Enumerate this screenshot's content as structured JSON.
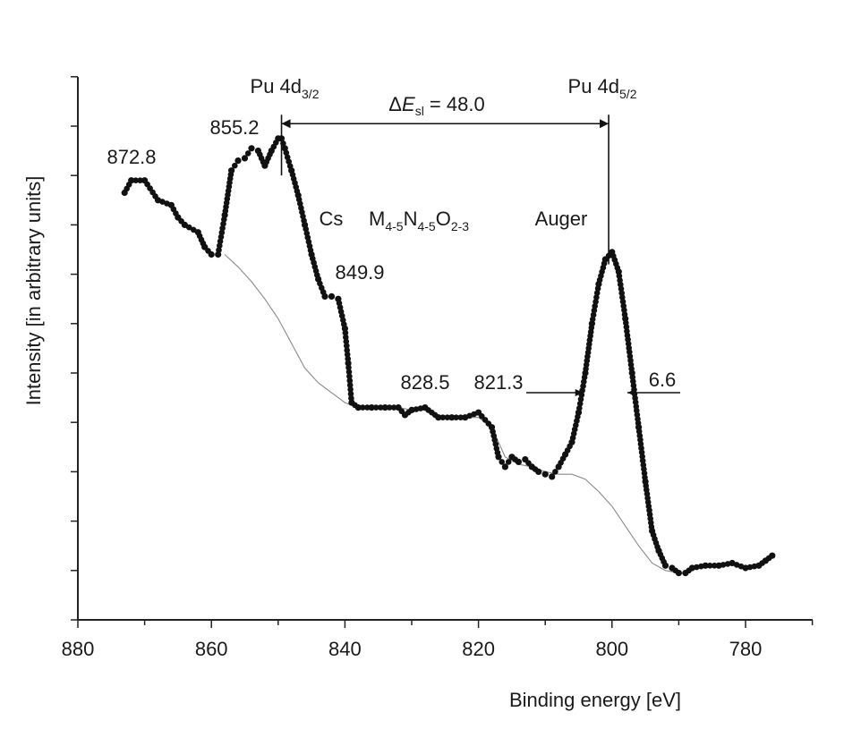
{
  "chart_data": {
    "type": "scatter",
    "xlabel": "Binding energy [eV]",
    "ylabel": "Intensity [in arbitrary units]",
    "xlim": [
      880,
      770
    ],
    "x_reversed": true,
    "ylim": [
      0,
      11
    ],
    "x_ticks": [
      880,
      860,
      840,
      820,
      800,
      780
    ],
    "x_tick_labels": [
      "880",
      "860",
      "840",
      "820",
      "800",
      "780"
    ],
    "y_tick_count": 12,
    "y_tick_labels_shown": false,
    "grid": false,
    "legend": "none",
    "colors": {
      "data": "#111111",
      "background": "#cccccc",
      "axis": "#222222"
    },
    "series": [
      {
        "style": "dotted-markers",
        "x": [
          873,
          872,
          870,
          868,
          866,
          865,
          864,
          862,
          861,
          860,
          859,
          858,
          857,
          856,
          855,
          854,
          853,
          852,
          851,
          850,
          849.5,
          849,
          848,
          847,
          846,
          845,
          844,
          843,
          842,
          841,
          840,
          839.5,
          839,
          838,
          836,
          834,
          832,
          831,
          830,
          828,
          826,
          824,
          822,
          820,
          818,
          817,
          816,
          815,
          814,
          813,
          812,
          811,
          810,
          809,
          808,
          807,
          806,
          805,
          804,
          803,
          802,
          801,
          800,
          799,
          798,
          797,
          796,
          795,
          794,
          793,
          792,
          791,
          790,
          789,
          788,
          786,
          784,
          782,
          780,
          778,
          777,
          776
        ],
        "y": [
          8.65,
          8.9,
          8.9,
          8.5,
          8.4,
          8.15,
          8.0,
          7.85,
          7.55,
          7.4,
          7.4,
          8.2,
          9.1,
          9.3,
          9.35,
          9.55,
          9.5,
          9.2,
          9.5,
          9.75,
          9.75,
          9.55,
          9.1,
          8.6,
          8.0,
          7.4,
          6.9,
          6.55,
          6.55,
          6.5,
          5.9,
          5.2,
          4.4,
          4.3,
          4.3,
          4.3,
          4.3,
          4.15,
          4.25,
          4.3,
          4.1,
          4.1,
          4.1,
          4.2,
          3.9,
          3.3,
          3.1,
          3.3,
          3.2,
          3.25,
          3.1,
          3.0,
          2.95,
          2.9,
          3.1,
          3.35,
          3.6,
          4.2,
          5.0,
          6.0,
          6.8,
          7.3,
          7.45,
          7.05,
          6.1,
          5.0,
          3.9,
          2.8,
          1.8,
          1.4,
          1.1,
          1.05,
          0.95,
          0.95,
          1.05,
          1.1,
          1.1,
          1.15,
          1.05,
          1.1,
          1.2,
          1.3
        ]
      },
      {
        "style": "thin-line",
        "x": [
          858,
          856,
          854,
          852,
          850,
          848,
          846,
          844,
          842,
          840,
          838,
          836,
          834,
          832,
          830,
          828,
          826,
          824,
          822,
          820,
          818,
          816,
          814,
          812,
          810,
          808,
          806,
          804,
          802,
          800,
          798,
          796,
          794,
          792,
          790,
          789
        ],
        "y": [
          7.4,
          7.15,
          6.85,
          6.5,
          6.1,
          5.6,
          5.1,
          4.8,
          4.6,
          4.4,
          4.3,
          4.3,
          4.3,
          4.3,
          4.25,
          4.25,
          4.15,
          4.1,
          4.1,
          4.1,
          3.9,
          3.3,
          3.15,
          3.1,
          3.0,
          2.95,
          2.95,
          2.85,
          2.6,
          2.3,
          1.9,
          1.5,
          1.15,
          1.0,
          0.95,
          0.95
        ]
      }
    ],
    "annotations": {
      "peak_4d32": {
        "label_main": "Pu 4d",
        "label_sub": "3/2",
        "x": 849.5
      },
      "peak_4d52": {
        "label_main": "Pu 4d",
        "label_sub": "5/2",
        "x": 800.5
      },
      "delta": {
        "prefix": "Δ",
        "var": "E",
        "sub": "sl",
        "suffix": " = 48.0",
        "from": 849.5,
        "to": 800.5,
        "y": 10.05
      },
      "labels": [
        {
          "text": "872.8",
          "x": 872.8,
          "y": 8.9
        },
        {
          "text": "855.2",
          "x": 855.2,
          "y": 9.35
        },
        {
          "text": "849.9",
          "x": 849.9,
          "y": 6.5
        },
        {
          "text": "828.5",
          "x": 828.5,
          "y": 4.3
        },
        {
          "text": "821.3",
          "x": 821.3,
          "y": 4.2
        },
        {
          "text": "6.6",
          "x": 797,
          "y": 4.75
        }
      ],
      "auger": {
        "cs": "Cs",
        "m": "M",
        "m_sub": "4-5",
        "n": "N",
        "n_sub": "4-5",
        "o": "O",
        "o_sub": "2-3",
        "auger": "Auger"
      },
      "fwhm": {
        "value": "6.6",
        "left_x": 804.3,
        "right_x": 797.7,
        "y": 4.6
      }
    }
  }
}
